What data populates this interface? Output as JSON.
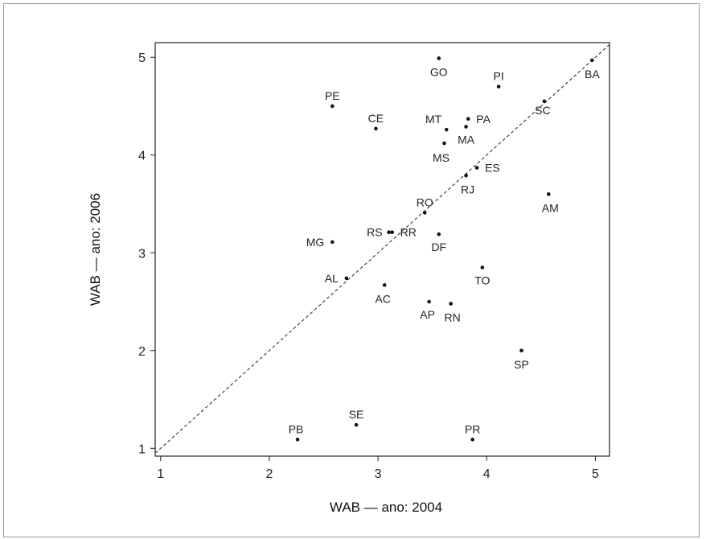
{
  "chart_data": {
    "type": "scatter",
    "xlabel": "WAB — ano: 2004",
    "ylabel": "WAB — ano: 2006",
    "xlim": [
      0.95,
      5.13
    ],
    "ylim": [
      0.92,
      5.15
    ],
    "xticks": [
      1,
      2,
      3,
      4,
      5
    ],
    "yticks": [
      1,
      2,
      3,
      4,
      5
    ],
    "reference_line": "y = x (dashed)",
    "grid": false,
    "points": [
      {
        "label": "GO",
        "x": 3.56,
        "y": 4.99
      },
      {
        "label": "BA",
        "x": 4.97,
        "y": 4.97
      },
      {
        "label": "PI",
        "x": 4.11,
        "y": 4.7
      },
      {
        "label": "SC",
        "x": 4.53,
        "y": 4.55
      },
      {
        "label": "PE",
        "x": 2.58,
        "y": 4.5
      },
      {
        "label": "PA",
        "x": 3.83,
        "y": 4.37
      },
      {
        "label": "MA",
        "x": 3.81,
        "y": 4.29
      },
      {
        "label": "CE",
        "x": 2.98,
        "y": 4.27
      },
      {
        "label": "MT",
        "x": 3.63,
        "y": 4.26
      },
      {
        "label": "MS",
        "x": 3.61,
        "y": 4.12
      },
      {
        "label": "ES",
        "x": 3.91,
        "y": 3.87
      },
      {
        "label": "RJ",
        "x": 3.81,
        "y": 3.79
      },
      {
        "label": "AM",
        "x": 4.57,
        "y": 3.6
      },
      {
        "label": "RO",
        "x": 3.43,
        "y": 3.41
      },
      {
        "label": "RS",
        "x": 3.1,
        "y": 3.21
      },
      {
        "label": "RR",
        "x": 3.13,
        "y": 3.21
      },
      {
        "label": "DF",
        "x": 3.56,
        "y": 3.19
      },
      {
        "label": "MG",
        "x": 2.58,
        "y": 3.11
      },
      {
        "label": "TO",
        "x": 3.96,
        "y": 2.85
      },
      {
        "label": "AL",
        "x": 2.71,
        "y": 2.74
      },
      {
        "label": "AC",
        "x": 3.06,
        "y": 2.67
      },
      {
        "label": "AP",
        "x": 3.47,
        "y": 2.5
      },
      {
        "label": "RN",
        "x": 3.67,
        "y": 2.48
      },
      {
        "label": "SP",
        "x": 4.32,
        "y": 2.0
      },
      {
        "label": "SE",
        "x": 2.8,
        "y": 1.24
      },
      {
        "label": "PB",
        "x": 2.26,
        "y": 1.09
      },
      {
        "label": "PR",
        "x": 3.87,
        "y": 1.09
      }
    ]
  }
}
